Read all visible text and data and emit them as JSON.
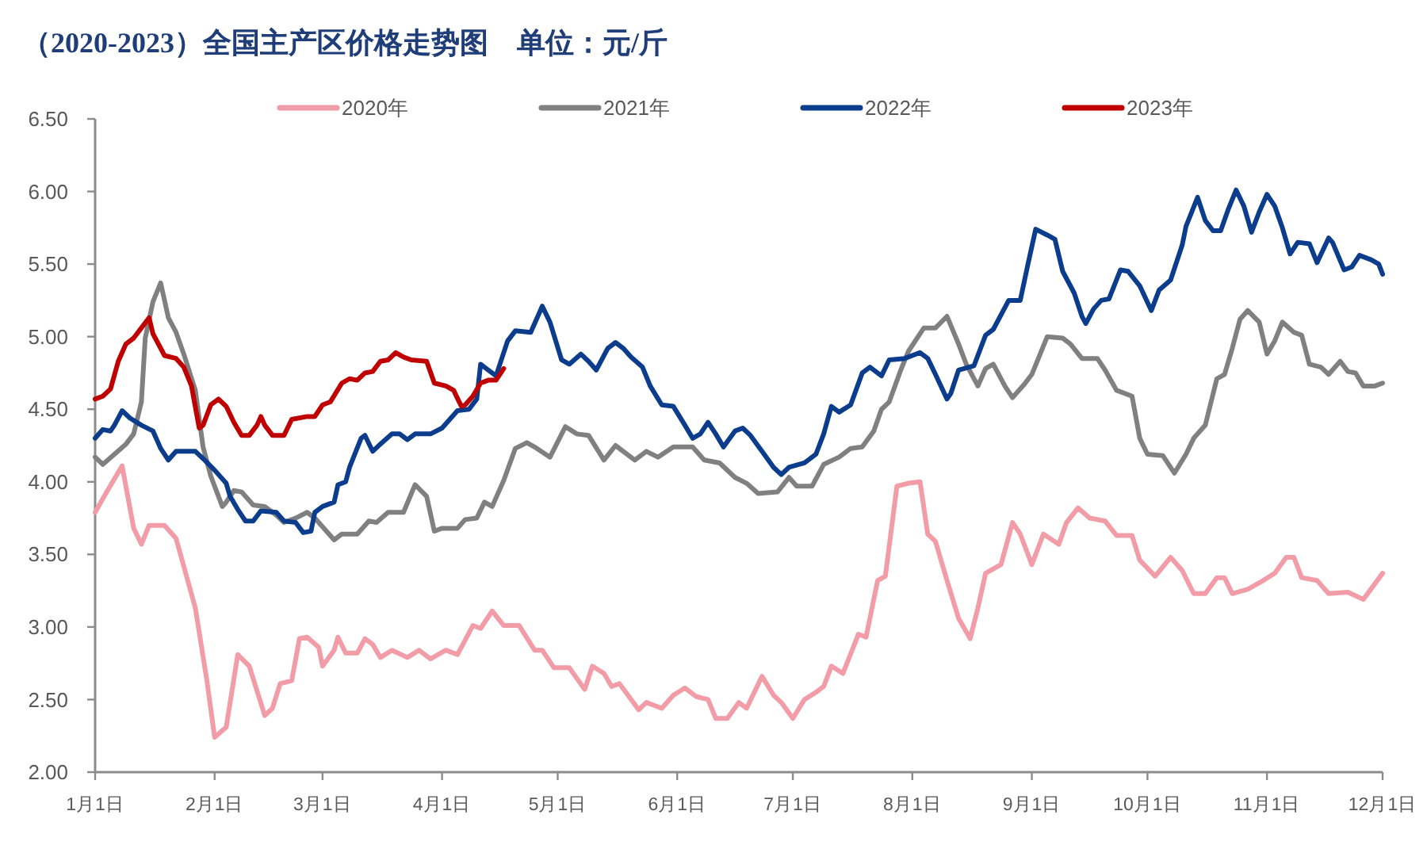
{
  "chart_data": {
    "type": "line",
    "title": "（2020-2023）全国主产区价格走势图　单位：元/斤",
    "legend": "top",
    "line_style": "solid",
    "xlim": [
      "--01-01",
      "--12-01"
    ],
    "xticks": [
      {
        "value": "--01-01",
        "label": "1月1日"
      },
      {
        "value": "--02-01",
        "label": "2月1日"
      },
      {
        "value": "--03-01",
        "label": "3月1日"
      },
      {
        "value": "--04-01",
        "label": "4月1日"
      },
      {
        "value": "--05-01",
        "label": "5月1日"
      },
      {
        "value": "--06-01",
        "label": "6月1日"
      },
      {
        "value": "--07-01",
        "label": "7月1日"
      },
      {
        "value": "--08-01",
        "label": "8月1日"
      },
      {
        "value": "--09-01",
        "label": "9月1日"
      },
      {
        "value": "--10-01",
        "label": "10月1日"
      },
      {
        "value": "--11-01",
        "label": "11月1日"
      },
      {
        "value": "--12-01",
        "label": "12月1日"
      }
    ],
    "ylim": [
      2,
      6.5
    ],
    "yticks": [
      {
        "value": 2,
        "label": "2.00"
      },
      {
        "value": 2.5,
        "label": "2.50"
      },
      {
        "value": 3,
        "label": "3.00"
      },
      {
        "value": 3.5,
        "label": "3.50"
      },
      {
        "value": 4,
        "label": "4.00"
      },
      {
        "value": 4.5,
        "label": "4.50"
      },
      {
        "value": 5,
        "label": "5.00"
      },
      {
        "value": 5.5,
        "label": "5.50"
      },
      {
        "value": 6,
        "label": "6.00"
      },
      {
        "value": 6.5,
        "label": "6.50"
      }
    ],
    "series": [
      {
        "name": "2020年",
        "color": "#f29ca7",
        "x": [
          "--01-01",
          "--01-04",
          "--01-08",
          "--01-11",
          "--01-13",
          "--01-15",
          "--01-19",
          "--01-22",
          "--01-27",
          "--01-30",
          "--02-01",
          "--02-04",
          "--02-07",
          "--02-10",
          "--02-14",
          "--02-16",
          "--02-18",
          "--02-21",
          "--02-23",
          "--02-25",
          "--02-28",
          "--03-01",
          "--03-04",
          "--03-05",
          "--03-07",
          "--03-10",
          "--03-12",
          "--03-14",
          "--03-16",
          "--03-19",
          "--03-23",
          "--03-26",
          "--03-29",
          "--04-02",
          "--04-05",
          "--04-09",
          "--04-11",
          "--04-14",
          "--04-17",
          "--04-21",
          "--04-25",
          "--04-27",
          "--04-30",
          "--05-04",
          "--05-08",
          "--05-10",
          "--05-13",
          "--05-15",
          "--05-17",
          "--05-22",
          "--05-24",
          "--05-26",
          "--05-28",
          "--05-31",
          "--06-03",
          "--06-06",
          "--06-09",
          "--06-11",
          "--06-14",
          "--06-17",
          "--06-19",
          "--06-23",
          "--06-26",
          "--06-28",
          "--07-01",
          "--07-04",
          "--07-07",
          "--07-09",
          "--07-11",
          "--07-14",
          "--07-18",
          "--07-20",
          "--07-23",
          "--07-25",
          "--07-28",
          "--07-31",
          "--08-03",
          "--08-05",
          "--08-07",
          "--08-10",
          "--08-13",
          "--08-16",
          "--08-18",
          "--08-20",
          "--08-24",
          "--08-27",
          "--08-29",
          "--09-01",
          "--09-04",
          "--09-08",
          "--09-10",
          "--09-13",
          "--09-16",
          "--09-20",
          "--09-23",
          "--09-27",
          "--09-29",
          "--10-03",
          "--10-07",
          "--10-10",
          "--10-13",
          "--10-16",
          "--10-19",
          "--10-21",
          "--10-23",
          "--10-27",
          "--10-31",
          "--11-03",
          "--11-06",
          "--11-08",
          "--11-10",
          "--11-14",
          "--11-17",
          "--11-22",
          "--11-26",
          "--12-01"
        ],
        "values": [
          3.79,
          3.93,
          4.11,
          3.68,
          3.57,
          3.7,
          3.7,
          3.61,
          3.13,
          2.63,
          2.24,
          2.31,
          2.81,
          2.73,
          2.39,
          2.44,
          2.61,
          2.63,
          2.92,
          2.93,
          2.86,
          2.73,
          2.84,
          2.93,
          2.82,
          2.82,
          2.92,
          2.88,
          2.79,
          2.84,
          2.79,
          2.84,
          2.78,
          2.84,
          2.81,
          3.01,
          2.99,
          3.11,
          3.01,
          3.01,
          2.84,
          2.84,
          2.72,
          2.72,
          2.57,
          2.73,
          2.68,
          2.59,
          2.61,
          2.43,
          2.48,
          2.46,
          2.44,
          2.53,
          2.58,
          2.52,
          2.5,
          2.37,
          2.37,
          2.48,
          2.44,
          2.66,
          2.53,
          2.48,
          2.37,
          2.5,
          2.55,
          2.59,
          2.73,
          2.68,
          2.95,
          2.93,
          3.32,
          3.35,
          3.97,
          3.99,
          4.0,
          3.64,
          3.59,
          3.32,
          3.06,
          2.92,
          3.13,
          3.37,
          3.43,
          3.72,
          3.64,
          3.43,
          3.64,
          3.57,
          3.72,
          3.82,
          3.75,
          3.73,
          3.63,
          3.63,
          3.46,
          3.35,
          3.48,
          3.39,
          3.23,
          3.23,
          3.34,
          3.34,
          3.23,
          3.26,
          3.32,
          3.37,
          3.48,
          3.48,
          3.34,
          3.32,
          3.23,
          3.24,
          3.19,
          3.37
        ]
      },
      {
        "name": "2021年",
        "color": "#808080",
        "x": [
          "--01-01",
          "--01-03",
          "--01-06",
          "--01-09",
          "--01-11",
          "--01-13",
          "--01-14",
          "--01-16",
          "--01-18",
          "--01-20",
          "--01-22",
          "--01-24",
          "--01-27",
          "--01-29",
          "--01-31",
          "--02-03",
          "--02-04",
          "--02-06",
          "--02-08",
          "--02-11",
          "--02-14",
          "--02-17",
          "--02-19",
          "--02-22",
          "--02-25",
          "--02-27",
          "--03-04",
          "--03-06",
          "--03-10",
          "--03-13",
          "--03-15",
          "--03-18",
          "--03-22",
          "--03-25",
          "--03-28",
          "--03-30",
          "--04-01",
          "--04-05",
          "--04-07",
          "--04-10",
          "--04-12",
          "--04-14",
          "--04-17",
          "--04-20",
          "--04-23",
          "--04-25",
          "--04-29",
          "--05-03",
          "--05-06",
          "--05-09",
          "--05-13",
          "--05-16",
          "--05-21",
          "--05-24",
          "--05-27",
          "--05-31",
          "--06-05",
          "--06-08",
          "--06-12",
          "--06-16",
          "--06-19",
          "--06-22",
          "--06-27",
          "--06-30",
          "--07-02",
          "--07-06",
          "--07-09",
          "--07-13",
          "--07-16",
          "--07-19",
          "--07-22",
          "--07-24",
          "--07-26",
          "--07-29",
          "--07-31",
          "--08-04",
          "--08-07",
          "--08-10",
          "--08-13",
          "--08-15",
          "--08-18",
          "--08-20",
          "--08-22",
          "--08-25",
          "--08-27",
          "--08-30",
          "--09-01",
          "--09-05",
          "--09-09",
          "--09-11",
          "--09-14",
          "--09-18",
          "--09-20",
          "--09-23",
          "--09-27",
          "--09-29",
          "--10-01",
          "--10-05",
          "--10-08",
          "--10-11",
          "--10-13",
          "--10-16",
          "--10-19",
          "--10-21",
          "--10-23",
          "--10-25",
          "--10-27",
          "--10-30",
          "--11-01",
          "--11-03",
          "--11-05",
          "--11-08",
          "--11-10",
          "--11-12",
          "--11-15",
          "--11-17",
          "--11-20",
          "--11-22",
          "--11-24",
          "--11-26",
          "--11-29",
          "--12-01"
        ],
        "values": [
          4.17,
          4.12,
          4.19,
          4.26,
          4.33,
          4.55,
          4.99,
          5.24,
          5.37,
          5.13,
          5.03,
          4.88,
          4.63,
          4.24,
          4.04,
          3.83,
          3.86,
          3.94,
          3.93,
          3.84,
          3.83,
          3.77,
          3.72,
          3.75,
          3.79,
          3.75,
          3.6,
          3.64,
          3.64,
          3.73,
          3.72,
          3.79,
          3.79,
          3.98,
          3.9,
          3.66,
          3.68,
          3.68,
          3.74,
          3.75,
          3.86,
          3.83,
          4.01,
          4.23,
          4.27,
          4.24,
          4.17,
          4.38,
          4.33,
          4.32,
          4.15,
          4.25,
          4.15,
          4.21,
          4.17,
          4.24,
          4.24,
          4.15,
          4.13,
          4.03,
          3.99,
          3.92,
          3.93,
          4.03,
          3.97,
          3.97,
          4.12,
          4.17,
          4.23,
          4.24,
          4.35,
          4.5,
          4.55,
          4.77,
          4.9,
          5.06,
          5.06,
          5.14,
          4.95,
          4.81,
          4.66,
          4.78,
          4.81,
          4.66,
          4.58,
          4.67,
          4.74,
          5.0,
          4.99,
          4.95,
          4.85,
          4.85,
          4.77,
          4.63,
          4.59,
          4.3,
          4.19,
          4.18,
          4.06,
          4.19,
          4.3,
          4.39,
          4.71,
          4.74,
          4.92,
          5.12,
          5.18,
          5.1,
          4.88,
          4.97,
          5.1,
          5.03,
          5.01,
          4.81,
          4.79,
          4.74,
          4.83,
          4.76,
          4.75,
          4.66,
          4.66,
          4.68
        ]
      },
      {
        "name": "2022年",
        "color": "#0b3d8c",
        "x": [
          "--01-01",
          "--01-03",
          "--01-05",
          "--01-06",
          "--01-08",
          "--01-10",
          "--01-13",
          "--01-16",
          "--01-18",
          "--01-20",
          "--01-22",
          "--01-27",
          "--01-29",
          "--02-01",
          "--02-04",
          "--02-05",
          "--02-07",
          "--02-09",
          "--02-11",
          "--02-13",
          "--02-17",
          "--02-19",
          "--02-22",
          "--02-24",
          "--02-26",
          "--02-27",
          "--03-01",
          "--03-04",
          "--03-05",
          "--03-07",
          "--03-08",
          "--03-11",
          "--03-12",
          "--03-14",
          "--03-16",
          "--03-19",
          "--03-21",
          "--03-23",
          "--03-25",
          "--03-29",
          "--04-01",
          "--04-03",
          "--04-05",
          "--04-08",
          "--04-10",
          "--04-11",
          "--04-13",
          "--04-15",
          "--04-18",
          "--04-20",
          "--04-24",
          "--04-26",
          "--04-27",
          "--04-29",
          "--05-02",
          "--05-04",
          "--05-07",
          "--05-09",
          "--05-11",
          "--05-14",
          "--05-16",
          "--05-18",
          "--05-20",
          "--05-23",
          "--05-25",
          "--05-28",
          "--05-31",
          "--06-03",
          "--06-05",
          "--06-07",
          "--06-09",
          "--06-11",
          "--06-13",
          "--06-16",
          "--06-18",
          "--06-20",
          "--06-23",
          "--06-26",
          "--06-28",
          "--06-30",
          "--07-04",
          "--07-07",
          "--07-09",
          "--07-11",
          "--07-13",
          "--07-16",
          "--07-19",
          "--07-21",
          "--07-24",
          "--07-26",
          "--07-30",
          "--08-03",
          "--08-05",
          "--08-07",
          "--08-10",
          "--08-11",
          "--08-13",
          "--08-17",
          "--08-20",
          "--08-22",
          "--08-26",
          "--08-29",
          "--08-31",
          "--09-02",
          "--09-05",
          "--09-07",
          "--09-09",
          "--09-12",
          "--09-14",
          "--09-15",
          "--09-17",
          "--09-19",
          "--09-21",
          "--09-24",
          "--09-26",
          "--09-29",
          "--10-02",
          "--10-04",
          "--10-07",
          "--10-10",
          "--10-11",
          "--10-14",
          "--10-16",
          "--10-18",
          "--10-20",
          "--10-22",
          "--10-24",
          "--10-26",
          "--10-28",
          "--10-30",
          "--11-01",
          "--11-03",
          "--11-05",
          "--11-07",
          "--11-09",
          "--11-12",
          "--11-14",
          "--11-17",
          "--11-18",
          "--11-21",
          "--11-23",
          "--11-25",
          "--11-28",
          "--11-30",
          "--12-01"
        ],
        "values": [
          4.3,
          4.36,
          4.35,
          4.39,
          4.49,
          4.44,
          4.39,
          4.35,
          4.23,
          4.15,
          4.21,
          4.21,
          4.16,
          4.08,
          3.99,
          3.9,
          3.81,
          3.73,
          3.73,
          3.8,
          3.79,
          3.73,
          3.72,
          3.65,
          3.66,
          3.79,
          3.83,
          3.86,
          3.98,
          4.0,
          4.1,
          4.3,
          4.32,
          4.21,
          4.26,
          4.33,
          4.33,
          4.29,
          4.33,
          4.33,
          4.37,
          4.43,
          4.49,
          4.5,
          4.57,
          4.81,
          4.77,
          4.73,
          4.97,
          5.04,
          5.03,
          5.15,
          5.21,
          5.1,
          4.84,
          4.81,
          4.88,
          4.83,
          4.77,
          4.92,
          4.96,
          4.92,
          4.86,
          4.79,
          4.66,
          4.53,
          4.52,
          4.39,
          4.3,
          4.33,
          4.41,
          4.33,
          4.24,
          4.35,
          4.37,
          4.32,
          4.21,
          4.1,
          4.05,
          4.1,
          4.13,
          4.19,
          4.33,
          4.52,
          4.48,
          4.53,
          4.75,
          4.79,
          4.73,
          4.84,
          4.85,
          4.89,
          4.85,
          4.74,
          4.57,
          4.61,
          4.77,
          4.8,
          5.01,
          5.05,
          5.25,
          5.25,
          5.5,
          5.74,
          5.7,
          5.67,
          5.45,
          5.3,
          5.14,
          5.09,
          5.19,
          5.25,
          5.26,
          5.46,
          5.45,
          5.35,
          5.18,
          5.32,
          5.39,
          5.63,
          5.76,
          5.96,
          5.8,
          5.73,
          5.73,
          5.88,
          6.01,
          5.9,
          5.72,
          5.86,
          5.98,
          5.9,
          5.75,
          5.57,
          5.65,
          5.64,
          5.51,
          5.68,
          5.65,
          5.46,
          5.48,
          5.56,
          5.53,
          5.5,
          5.43
        ]
      },
      {
        "name": "2023年",
        "color": "#c00000",
        "x": [
          "--01-01",
          "--01-03",
          "--01-05",
          "--01-07",
          "--01-09",
          "--01-11",
          "--01-13",
          "--01-15",
          "--01-16",
          "--01-19",
          "--01-22",
          "--01-24",
          "--01-26",
          "--01-28",
          "--01-29",
          "--01-31",
          "--02-02",
          "--02-04",
          "--02-06",
          "--02-08",
          "--02-10",
          "--02-12",
          "--02-13",
          "--02-14",
          "--02-16",
          "--02-19",
          "--02-21",
          "--02-25",
          "--02-27",
          "--03-01",
          "--03-03",
          "--03-06",
          "--03-08",
          "--03-10",
          "--03-12",
          "--03-14",
          "--03-16",
          "--03-18",
          "--03-20",
          "--03-22",
          "--03-24",
          "--03-28",
          "--03-30",
          "--04-02",
          "--04-04",
          "--04-06",
          "--04-07",
          "--04-09",
          "--04-11",
          "--04-13",
          "--04-15",
          "--04-17"
        ],
        "values": [
          4.57,
          4.59,
          4.64,
          4.83,
          4.95,
          4.99,
          5.06,
          5.13,
          5.02,
          4.87,
          4.85,
          4.79,
          4.66,
          4.37,
          4.39,
          4.53,
          4.57,
          4.52,
          4.41,
          4.32,
          4.32,
          4.39,
          4.45,
          4.39,
          4.32,
          4.32,
          4.43,
          4.45,
          4.45,
          4.53,
          4.55,
          4.68,
          4.71,
          4.7,
          4.75,
          4.76,
          4.83,
          4.84,
          4.89,
          4.86,
          4.84,
          4.83,
          4.68,
          4.66,
          4.63,
          4.52,
          4.53,
          4.59,
          4.68,
          4.7,
          4.7,
          4.78
        ]
      }
    ]
  }
}
